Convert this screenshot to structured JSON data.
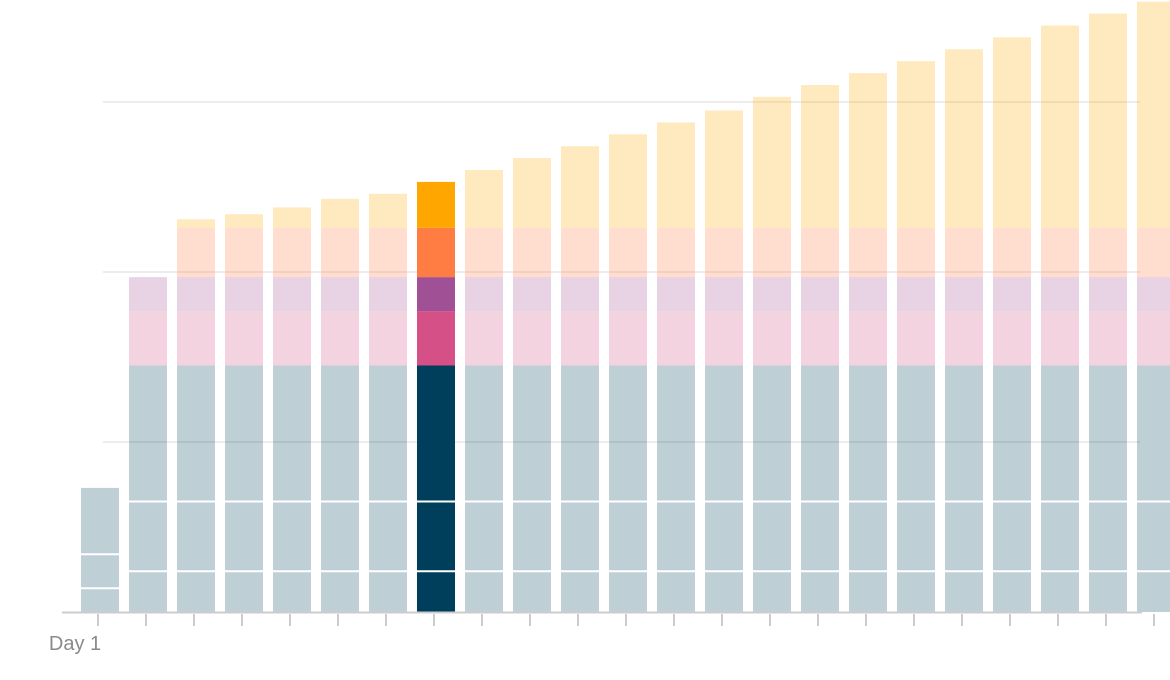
{
  "chart_data": {
    "type": "bar",
    "stacked": true,
    "highlight_index": 7,
    "categories": [
      "Day 1",
      "",
      "",
      "",
      "",
      "",
      "",
      "",
      "",
      "",
      "",
      "",
      "",
      "",
      "",
      "",
      "",
      "",
      "",
      "",
      "",
      "",
      ""
    ],
    "x_tick_labels": [
      "Day 1"
    ],
    "ylim": [
      0,
      350
    ],
    "gridlines_y": [
      100,
      200,
      300
    ],
    "series": [
      {
        "color": "#003f5c",
        "values": [
          73,
          145,
          145,
          145,
          145,
          145,
          145,
          145,
          145,
          145,
          145,
          145,
          145,
          145,
          145,
          145,
          145,
          145,
          145,
          145,
          145,
          145,
          145
        ]
      },
      {
        "color": "#d45087",
        "values": [
          0,
          32,
          32,
          32,
          32,
          32,
          32,
          32,
          32,
          32,
          32,
          32,
          32,
          32,
          32,
          32,
          32,
          32,
          32,
          32,
          32,
          32,
          32
        ]
      },
      {
        "color": "#a05195",
        "values": [
          0,
          20,
          20,
          20,
          20,
          20,
          20,
          20,
          20,
          20,
          20,
          20,
          20,
          20,
          20,
          20,
          20,
          20,
          20,
          20,
          20,
          20,
          20
        ]
      },
      {
        "color": "#ff7c43",
        "values": [
          0,
          0,
          29,
          29,
          29,
          29,
          29,
          29,
          29,
          29,
          29,
          29,
          29,
          29,
          29,
          29,
          29,
          29,
          29,
          29,
          29,
          29,
          29
        ]
      },
      {
        "color": "#ffa600",
        "values": [
          0,
          0,
          5,
          8,
          12,
          17,
          20,
          27,
          34,
          41,
          48,
          55,
          62,
          69,
          77,
          84,
          91,
          98,
          105,
          112,
          119,
          126,
          133
        ]
      }
    ],
    "inner_lines": [
      [
        14,
        34
      ],
      [
        24,
        65
      ],
      [
        24,
        65
      ],
      [
        24,
        65
      ],
      [
        24,
        65
      ],
      [
        24,
        65
      ],
      [
        24,
        65
      ],
      [
        24,
        65
      ],
      [
        24,
        65
      ],
      [
        24,
        65
      ],
      [
        24,
        65
      ],
      [
        24,
        65
      ],
      [
        24,
        65
      ],
      [
        24,
        65
      ],
      [
        24,
        65
      ],
      [
        24,
        65
      ],
      [
        24,
        65
      ],
      [
        24,
        65
      ],
      [
        24,
        65
      ],
      [
        24,
        65
      ],
      [
        24,
        65
      ],
      [
        24,
        65
      ],
      [
        24,
        65
      ]
    ],
    "colors": {
      "grid": "#ececec",
      "axis": "#cccccc",
      "faded_opacity": 0.25
    }
  }
}
